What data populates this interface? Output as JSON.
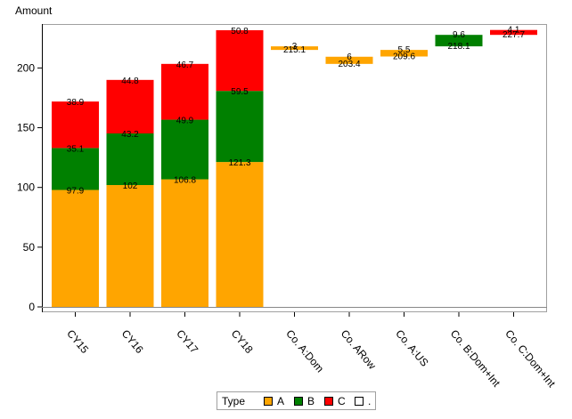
{
  "chart_data": {
    "type": "bar",
    "subtype": "stacked-waterfall",
    "ylabel": "Amount",
    "xlabel": "",
    "ylim": [
      0,
      235
    ],
    "yticks": [
      0,
      50,
      100,
      150,
      200
    ],
    "grid": false,
    "colors": {
      "A": "#FFA500",
      "B": "#008000",
      "C": "#FF0000",
      ".": "#FFFFFF"
    },
    "categories": [
      "CY15",
      "CY16",
      "CY17",
      "CY18",
      "Co. A:Dom",
      "Co. ARow",
      "Co. A:US",
      "Co. B:Dom+Int",
      "Co. C:Dom+Int"
    ],
    "stacked_bars": [
      {
        "category": "CY15",
        "segments": [
          {
            "type": "A",
            "value": 97.9,
            "label": "97.9"
          },
          {
            "type": "B",
            "value": 35.1,
            "label": "35.1"
          },
          {
            "type": "C",
            "value": 38.9,
            "label": "38.9"
          }
        ]
      },
      {
        "category": "CY16",
        "segments": [
          {
            "type": "A",
            "value": 102,
            "label": "102"
          },
          {
            "type": "B",
            "value": 43.2,
            "label": "43.2"
          },
          {
            "type": "C",
            "value": 44.8,
            "label": "44.8"
          }
        ]
      },
      {
        "category": "CY17",
        "segments": [
          {
            "type": "A",
            "value": 106.8,
            "label": "106.8"
          },
          {
            "type": "B",
            "value": 49.9,
            "label": "49.9"
          },
          {
            "type": "C",
            "value": 46.7,
            "label": "46.7"
          }
        ]
      },
      {
        "category": "CY18",
        "segments": [
          {
            "type": "A",
            "value": 121.3,
            "label": "121.3"
          },
          {
            "type": "B",
            "value": 59.5,
            "label": "59.5"
          },
          {
            "type": "C",
            "value": 50.8,
            "label": "50.8"
          }
        ]
      }
    ],
    "waterfall_bars": [
      {
        "category": "Co. A:Dom",
        "type": "A",
        "base": 215.1,
        "delta": 3,
        "base_label": "215.1",
        "delta_label": "3"
      },
      {
        "category": "Co. ARow",
        "type": "A",
        "base": 203.4,
        "delta": 6,
        "base_label": "203.4",
        "delta_label": "6"
      },
      {
        "category": "Co. A:US",
        "type": "A",
        "base": 209.6,
        "delta": 5.5,
        "base_label": "209.6",
        "delta_label": "5.5"
      },
      {
        "category": "Co. B:Dom+Int",
        "type": "B",
        "base": 218.1,
        "delta": 9.6,
        "base_label": "218.1",
        "delta_label": "9.6"
      },
      {
        "category": "Co. C:Dom+Int",
        "type": "C",
        "base": 227.7,
        "delta": 4.1,
        "base_label": "227.7",
        "delta_label": "4.1"
      }
    ],
    "legend": {
      "title": "Type",
      "position": "bottom-center",
      "items": [
        {
          "label": "A",
          "color": "#FFA500"
        },
        {
          "label": "B",
          "color": "#008000"
        },
        {
          "label": "C",
          "color": "#FF0000"
        },
        {
          "label": ".",
          "color": "#FFFFFF"
        }
      ]
    }
  }
}
